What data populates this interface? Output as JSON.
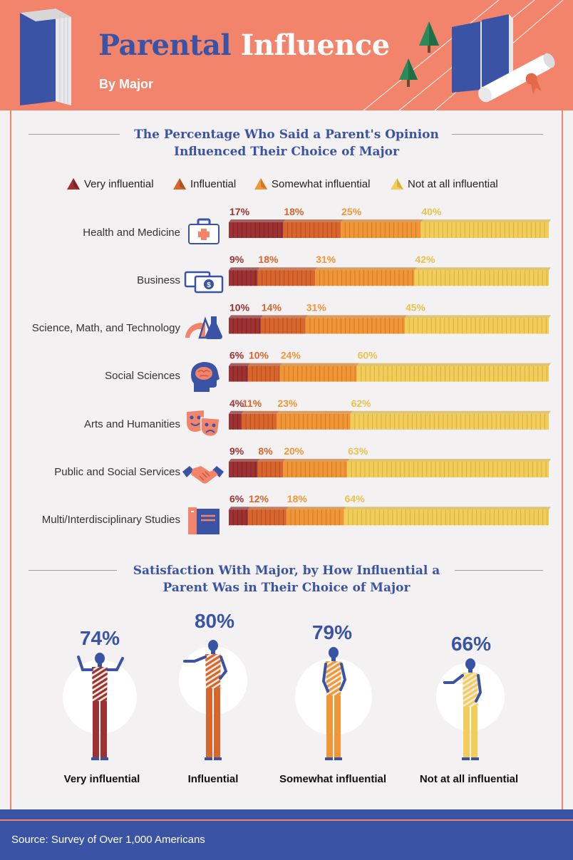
{
  "header": {
    "title_part1": "Parental",
    "title_part2": "Influence",
    "subtitle": "By Major"
  },
  "section1": {
    "title_line1": "The Percentage Who Said a Parent's Opinion",
    "title_line2": "Influenced Their Choice of Major"
  },
  "section2": {
    "title_line1": "Satisfaction With Major, by How Influential a",
    "title_line2": "Parent Was in Their Choice of Major"
  },
  "colors": {
    "very": "#9e3132",
    "influential": "#d8652c",
    "somewhat": "#f09637",
    "not_at_all": "#f2cd5a",
    "accent": "#3a53a4",
    "header": "#f1846a"
  },
  "chart_data": [
    {
      "type": "bar",
      "orientation": "horizontal-stacked",
      "title": "The Percentage Who Said a Parent's Opinion Influenced Their Choice of Major",
      "legend": [
        "Very influential",
        "Influential",
        "Somewhat influential",
        "Not at all influential"
      ],
      "legend_position": "top",
      "categories": [
        "Health and Medicine",
        "Business",
        "Science, Math, and Technology",
        "Social Sciences",
        "Arts and Humanities",
        "Public and Social Services",
        "Multi/Interdisciplinary Studies"
      ],
      "icons": [
        "first-aid-kit-icon",
        "money-icon",
        "science-tools-icon",
        "brain-head-icon",
        "theater-masks-icon",
        "handshake-icon",
        "books-icon"
      ],
      "series": [
        {
          "name": "Very influential",
          "values": [
            17,
            9,
            10,
            6,
            4,
            9,
            6
          ]
        },
        {
          "name": "Influential",
          "values": [
            18,
            18,
            14,
            10,
            11,
            8,
            12
          ]
        },
        {
          "name": "Somewhat influential",
          "values": [
            25,
            31,
            31,
            24,
            23,
            20,
            18
          ]
        },
        {
          "name": "Not at all influential",
          "values": [
            40,
            42,
            45,
            60,
            62,
            63,
            64
          ]
        }
      ],
      "unit": "%"
    },
    {
      "type": "bar",
      "title": "Satisfaction With Major, by How Influential a Parent Was in Their Choice of Major",
      "categories": [
        "Very influential",
        "Influential",
        "Somewhat influential",
        "Not at all influential"
      ],
      "values": [
        74,
        80,
        79,
        66
      ],
      "unit": "%"
    }
  ],
  "source": "Source: Survey of Over 1,000 Americans"
}
